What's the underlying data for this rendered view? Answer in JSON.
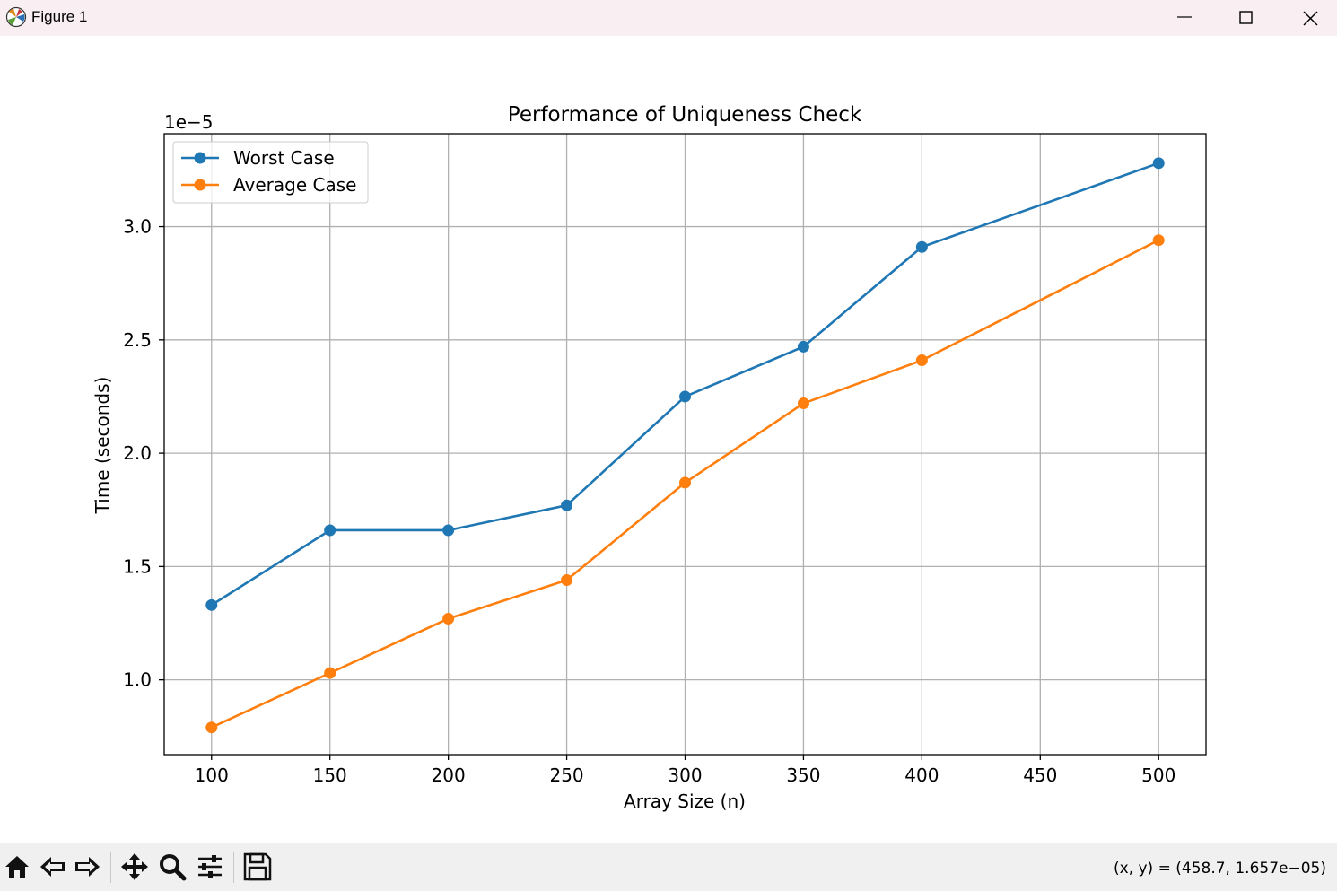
{
  "window": {
    "title": "Figure 1",
    "icons": {
      "app": "matplotlib-icon",
      "minimize": "minimize-icon",
      "maximize": "maximize-icon",
      "close": "close-icon"
    }
  },
  "toolbar": {
    "buttons": [
      "home-icon",
      "back-arrow-icon",
      "forward-arrow-icon",
      "pan-icon",
      "zoom-icon",
      "subplots-icon",
      "save-icon"
    ],
    "coordinates": "(x, y) = (458.7, 1.657e−05)"
  },
  "chart_data": {
    "type": "line",
    "title": "Performance of Uniqueness Check",
    "xlabel": "Array Size (n)",
    "ylabel": "Time (seconds)",
    "offset_label": "1e−5",
    "x": [
      100,
      150,
      200,
      250,
      300,
      350,
      400,
      500
    ],
    "xlim": [
      80,
      520
    ],
    "ylim": [
      0.67,
      3.41
    ],
    "x_ticks": [
      100,
      150,
      200,
      250,
      300,
      350,
      400,
      450,
      500
    ],
    "y_ticks": [
      1.0,
      1.5,
      2.0,
      2.5,
      3.0
    ],
    "x_tick_labels": [
      "100",
      "150",
      "200",
      "250",
      "300",
      "350",
      "400",
      "450",
      "500"
    ],
    "y_tick_labels": [
      "1.0",
      "1.5",
      "2.0",
      "2.5",
      "3.0"
    ],
    "grid": true,
    "legend_position": "top-left",
    "series": [
      {
        "name": "Worst Case",
        "color": "#1f77b4",
        "marker": "circle",
        "values": [
          1.33,
          1.66,
          1.66,
          1.77,
          2.25,
          2.47,
          2.91,
          3.28
        ]
      },
      {
        "name": "Average Case",
        "color": "#ff7f0e",
        "marker": "circle",
        "values": [
          0.79,
          1.03,
          1.27,
          1.44,
          1.87,
          2.22,
          2.41,
          2.94
        ]
      }
    ]
  }
}
